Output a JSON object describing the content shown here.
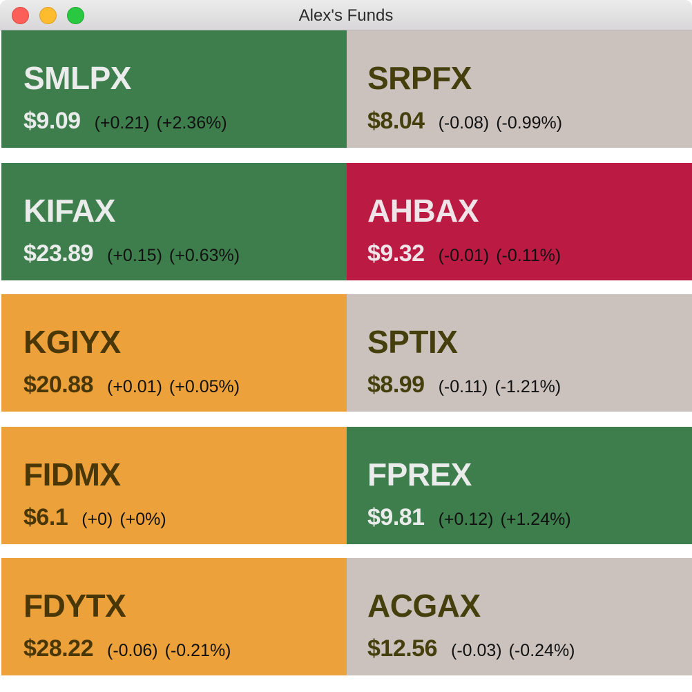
{
  "window": {
    "title": "Alex's Funds"
  },
  "funds": [
    {
      "ticker": "SMLPX",
      "price": "$9.09",
      "change": "(+0.21)",
      "pct": "(+2.36%)",
      "status": "up"
    },
    {
      "ticker": "SRPFX",
      "price": "$8.04",
      "change": "(-0.08)",
      "pct": "(-0.99%)",
      "status": "flat-gray"
    },
    {
      "ticker": "KIFAX",
      "price": "$23.89",
      "change": "(+0.15)",
      "pct": "(+0.63%)",
      "status": "up"
    },
    {
      "ticker": "AHBAX",
      "price": "$9.32",
      "change": "(-0.01)",
      "pct": "(-0.11%)",
      "status": "down"
    },
    {
      "ticker": "KGIYX",
      "price": "$20.88",
      "change": "(+0.01)",
      "pct": "(+0.05%)",
      "status": "flat-orange"
    },
    {
      "ticker": "SPTIX",
      "price": "$8.99",
      "change": "(-0.11)",
      "pct": "(-1.21%)",
      "status": "flat-gray"
    },
    {
      "ticker": "FIDMX",
      "price": "$6.1",
      "change": "(+0)",
      "pct": "(+0%)",
      "status": "flat-orange"
    },
    {
      "ticker": "FPREX",
      "price": "$9.81",
      "change": "(+0.12)",
      "pct": "(+1.24%)",
      "status": "up"
    },
    {
      "ticker": "FDYTX",
      "price": "$28.22",
      "change": "(-0.06)",
      "pct": "(-0.21%)",
      "status": "flat-orange"
    },
    {
      "ticker": "ACGAX",
      "price": "$12.56",
      "change": "(-0.03)",
      "pct": "(-0.24%)",
      "status": "flat-gray"
    }
  ],
  "colors": {
    "up": "#3e7d4c",
    "down": "#bb1b43",
    "flat-orange": "#eca13b",
    "flat-gray": "#cbc2be"
  }
}
